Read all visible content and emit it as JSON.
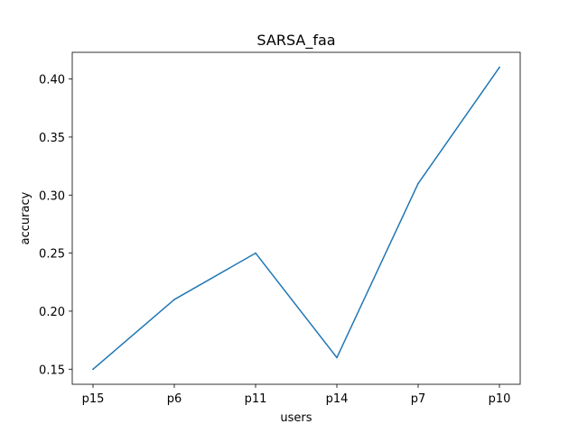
{
  "chart_data": {
    "type": "line",
    "title": "SARSA_faa",
    "xlabel": "users",
    "ylabel": "accuracy",
    "categories": [
      "p15",
      "p6",
      "p11",
      "p14",
      "p7",
      "p10"
    ],
    "series": [
      {
        "values": [
          0.15,
          0.21,
          0.25,
          0.16,
          0.31,
          0.41
        ],
        "color": "#1f77b4"
      }
    ],
    "yticks": [
      "0.15",
      "0.20",
      "0.25",
      "0.30",
      "0.35",
      "0.40"
    ],
    "ylim": [
      0.137,
      0.423
    ],
    "grid": false
  }
}
